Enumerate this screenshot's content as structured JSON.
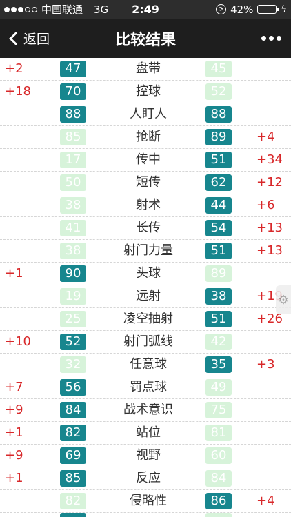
{
  "status_bar": {
    "carrier": "中国联通",
    "network": "3G",
    "time": "2:49",
    "battery": "42%",
    "battery_level": 0.42,
    "icons": [
      "signal-dots-icon",
      "lock-rotation-icon",
      "battery-icon",
      "charging-icon"
    ]
  },
  "nav": {
    "back_label": "返回",
    "title": "比较结果",
    "more_icon": "more-dots-icon"
  },
  "colors": {
    "higher_badge": "#17868e",
    "lower_badge": "#d7f3da",
    "diff_text": "#d8282a",
    "status_bar_bg": "#2d2d2d",
    "nav_bg": "#1e1e1e"
  },
  "rows": [
    {
      "attr": "盘带",
      "left": "47",
      "right": "45",
      "left_diff": "+2",
      "right_diff": "",
      "winner": "left"
    },
    {
      "attr": "控球",
      "left": "70",
      "right": "52",
      "left_diff": "+18",
      "right_diff": "",
      "winner": "left"
    },
    {
      "attr": "人盯人",
      "left": "88",
      "right": "88",
      "left_diff": "",
      "right_diff": "",
      "winner": "both"
    },
    {
      "attr": "抢断",
      "left": "85",
      "right": "89",
      "left_diff": "",
      "right_diff": "+4",
      "winner": "right"
    },
    {
      "attr": "传中",
      "left": "17",
      "right": "51",
      "left_diff": "",
      "right_diff": "+34",
      "winner": "right"
    },
    {
      "attr": "短传",
      "left": "50",
      "right": "62",
      "left_diff": "",
      "right_diff": "+12",
      "winner": "right"
    },
    {
      "attr": "射术",
      "left": "38",
      "right": "44",
      "left_diff": "",
      "right_diff": "+6",
      "winner": "right"
    },
    {
      "attr": "长传",
      "left": "41",
      "right": "54",
      "left_diff": "",
      "right_diff": "+13",
      "winner": "right"
    },
    {
      "attr": "射门力量",
      "left": "38",
      "right": "51",
      "left_diff": "",
      "right_diff": "+13",
      "winner": "right"
    },
    {
      "attr": "头球",
      "left": "90",
      "right": "89",
      "left_diff": "+1",
      "right_diff": "",
      "winner": "left"
    },
    {
      "attr": "远射",
      "left": "19",
      "right": "38",
      "left_diff": "",
      "right_diff": "+19",
      "winner": "right"
    },
    {
      "attr": "凌空抽射",
      "left": "25",
      "right": "51",
      "left_diff": "",
      "right_diff": "+26",
      "winner": "right"
    },
    {
      "attr": "射门弧线",
      "left": "52",
      "right": "42",
      "left_diff": "+10",
      "right_diff": "",
      "winner": "left"
    },
    {
      "attr": "任意球",
      "left": "32",
      "right": "35",
      "left_diff": "",
      "right_diff": "+3",
      "winner": "right"
    },
    {
      "attr": "罚点球",
      "left": "56",
      "right": "49",
      "left_diff": "+7",
      "right_diff": "",
      "winner": "left"
    },
    {
      "attr": "战术意识",
      "left": "84",
      "right": "75",
      "left_diff": "+9",
      "right_diff": "",
      "winner": "left"
    },
    {
      "attr": "站位",
      "left": "82",
      "right": "81",
      "left_diff": "+1",
      "right_diff": "",
      "winner": "left"
    },
    {
      "attr": "视野",
      "left": "69",
      "right": "60",
      "left_diff": "+9",
      "right_diff": "",
      "winner": "left"
    },
    {
      "attr": "反应",
      "left": "85",
      "right": "84",
      "left_diff": "+1",
      "right_diff": "",
      "winner": "left"
    },
    {
      "attr": "侵略性",
      "left": "82",
      "right": "86",
      "left_diff": "",
      "right_diff": "+4",
      "winner": "right"
    }
  ],
  "float_tool_icon": "gear-icon"
}
